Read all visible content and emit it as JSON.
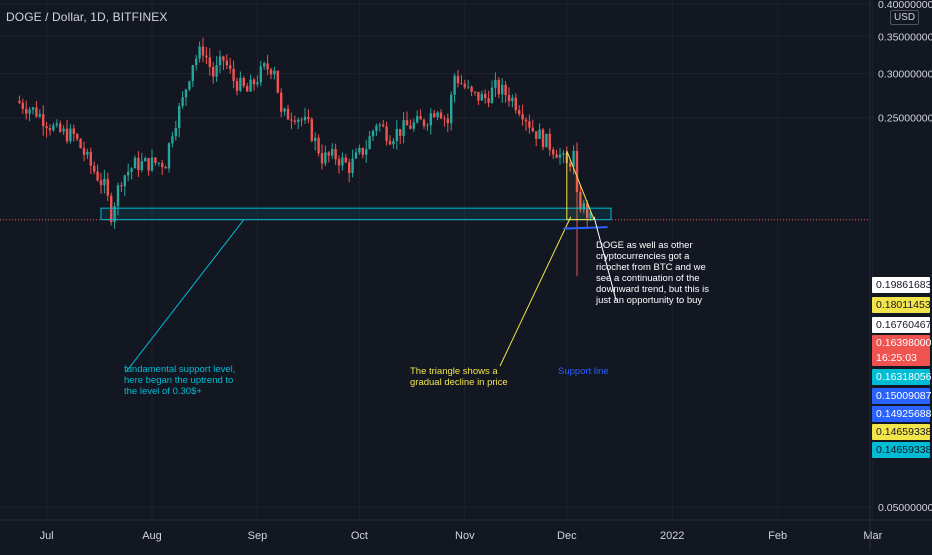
{
  "header": {
    "symbol": "DOGE / Dollar",
    "interval": "1D",
    "exchange": "BITFINEX",
    "sep": ", ",
    "currency": "USD"
  },
  "colors": {
    "background": "#131722",
    "grid": "#1e222d",
    "up": "#26a69a",
    "down": "#ef5350",
    "support_box": "#00bcd4",
    "triangle": "#f2e54a",
    "blue_line": "#2962ff",
    "last_price_line": "#ef5350"
  },
  "chart_data": {
    "type": "candlestick",
    "x_axis": {
      "ticks": [
        "Jul",
        "Aug",
        "Sep",
        "Oct",
        "Nov",
        "Dec",
        "2022",
        "Feb",
        "Mar"
      ]
    },
    "y_axis": {
      "ticks": [
        "0.40000000",
        "0.35000000",
        "0.30000000",
        "0.25000000",
        "0.05000000"
      ],
      "range": [
        0.045,
        0.4
      ],
      "scale": "log"
    },
    "close_path": [
      {
        "date": "2021-06-22",
        "close": 0.268
      },
      {
        "date": "2021-06-28",
        "close": 0.256
      },
      {
        "date": "2021-07-04",
        "close": 0.236
      },
      {
        "date": "2021-07-09",
        "close": 0.232
      },
      {
        "date": "2021-07-14",
        "close": 0.205
      },
      {
        "date": "2021-07-18",
        "close": 0.188
      },
      {
        "date": "2021-07-20",
        "close": 0.168
      },
      {
        "date": "2021-07-23",
        "close": 0.195
      },
      {
        "date": "2021-07-27",
        "close": 0.206
      },
      {
        "date": "2021-07-31",
        "close": 0.207
      },
      {
        "date": "2021-08-05",
        "close": 0.208
      },
      {
        "date": "2021-08-07",
        "close": 0.238
      },
      {
        "date": "2021-08-10",
        "close": 0.268
      },
      {
        "date": "2021-08-13",
        "close": 0.315
      },
      {
        "date": "2021-08-16",
        "close": 0.332
      },
      {
        "date": "2021-08-19",
        "close": 0.298
      },
      {
        "date": "2021-08-22",
        "close": 0.318
      },
      {
        "date": "2021-08-25",
        "close": 0.292
      },
      {
        "date": "2021-08-29",
        "close": 0.278
      },
      {
        "date": "2021-09-03",
        "close": 0.306
      },
      {
        "date": "2021-09-06",
        "close": 0.309
      },
      {
        "date": "2021-09-08",
        "close": 0.252
      },
      {
        "date": "2021-09-12",
        "close": 0.254
      },
      {
        "date": "2021-09-16",
        "close": 0.241
      },
      {
        "date": "2021-09-20",
        "close": 0.212
      },
      {
        "date": "2021-09-24",
        "close": 0.213
      },
      {
        "date": "2021-09-28",
        "close": 0.204
      },
      {
        "date": "2021-10-03",
        "close": 0.222
      },
      {
        "date": "2021-10-06",
        "close": 0.245
      },
      {
        "date": "2021-10-10",
        "close": 0.232
      },
      {
        "date": "2021-10-15",
        "close": 0.241
      },
      {
        "date": "2021-10-20",
        "close": 0.246
      },
      {
        "date": "2021-10-24",
        "close": 0.262
      },
      {
        "date": "2021-10-27",
        "close": 0.245
      },
      {
        "date": "2021-10-29",
        "close": 0.298
      },
      {
        "date": "2021-11-03",
        "close": 0.274
      },
      {
        "date": "2021-11-07",
        "close": 0.271
      },
      {
        "date": "2021-11-10",
        "close": 0.283
      },
      {
        "date": "2021-11-14",
        "close": 0.274
      },
      {
        "date": "2021-11-18",
        "close": 0.257
      },
      {
        "date": "2021-11-21",
        "close": 0.238
      },
      {
        "date": "2021-11-25",
        "close": 0.226
      },
      {
        "date": "2021-11-28",
        "close": 0.218
      },
      {
        "date": "2021-12-01",
        "close": 0.205
      },
      {
        "date": "2021-12-03",
        "close": 0.214
      },
      {
        "date": "2021-12-04",
        "close": 0.178
      },
      {
        "date": "2021-12-06",
        "close": 0.172
      },
      {
        "date": "2021-12-08",
        "close": 0.164
      }
    ],
    "series": [
      {
        "name": "DOGE / Dollar"
      }
    ],
    "horizontal_levels": [
      {
        "label": "last_price",
        "value": 0.16398
      }
    ]
  },
  "price_labels": [
    {
      "value": "0.19861683",
      "time": ""
    },
    {
      "value": "0.18011453",
      "time": ""
    },
    {
      "value": "0.16760467",
      "time": ""
    },
    {
      "value": "0.16398000",
      "time": "16:25:03"
    },
    {
      "value": "0.16318056",
      "time": ""
    },
    {
      "value": "0.15009087",
      "time": ""
    },
    {
      "value": "0.14925688",
      "time": ""
    },
    {
      "value": "0.14659338",
      "time": ""
    },
    {
      "value": "0.14659338",
      "time": ""
    }
  ],
  "annotations": {
    "support_text": "fundamental support level, here began the uptrend to the level of 0.30$+",
    "triangle_text": "The triangle shows a gradual decline in price",
    "support_line_text": "Support line",
    "doge_text": "DOGE as well as other cryptocurrencies got a ricochet from BTC and we see a continuation of the downward trend, but this is just an opportunity to buy"
  }
}
